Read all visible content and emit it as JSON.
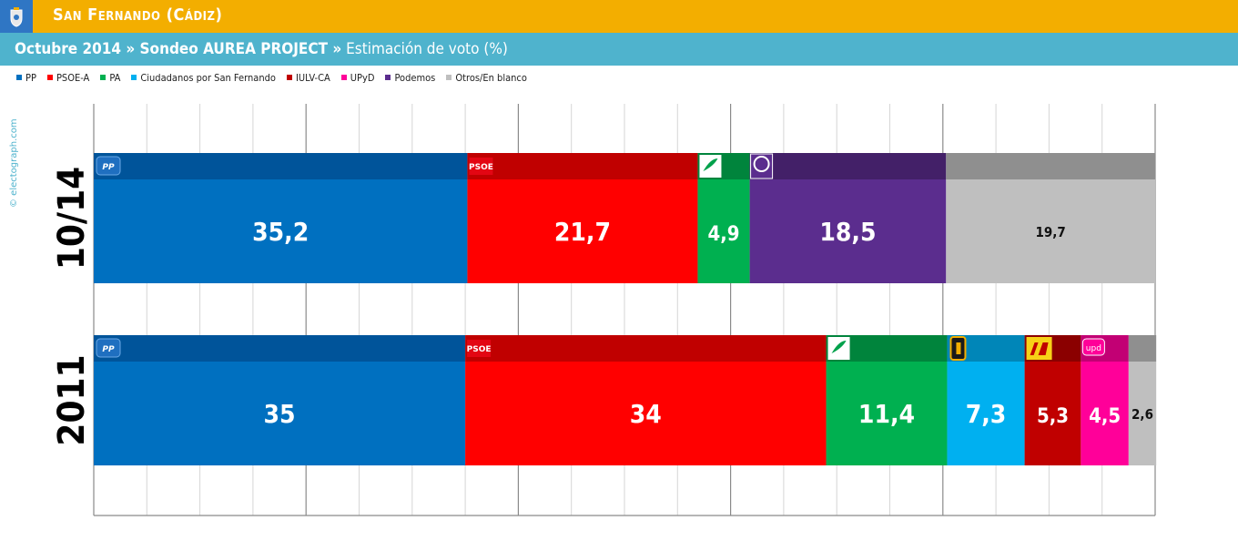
{
  "header": {
    "title": "San Fernando (Cádiz)",
    "subtitle_bold": "Octubre 2014 » Sondeo AUREA PROJECT »",
    "subtitle_rest": " Estimación de voto (%)",
    "colors": {
      "top_bar": "#f3ae00",
      "sub_bar": "#4fb3cd"
    }
  },
  "watermark": "© electograph.com",
  "chart_data": {
    "type": "bar",
    "orientation": "horizontal-stacked",
    "legend": [
      {
        "name": "PP",
        "color": "#0070c0"
      },
      {
        "name": "PSOE-A",
        "color": "#ff0000"
      },
      {
        "name": "PA",
        "color": "#00b050"
      },
      {
        "name": "Ciudadanos por San Fernando",
        "color": "#00b0f0"
      },
      {
        "name": "IULV-CA",
        "color": "#c00000"
      },
      {
        "name": "UPyD",
        "color": "#ff0099"
      },
      {
        "name": "Podemos",
        "color": "#5b2d8e"
      },
      {
        "name": "Otros/En blanco",
        "color": "#bfbfbf"
      }
    ],
    "xlim": [
      0,
      100
    ],
    "grid": true,
    "rows": [
      {
        "label": "10/14",
        "segments": [
          {
            "party": "PP",
            "value": 35.2,
            "label": "35,2",
            "color": "#0070c0",
            "dark": "#00549a",
            "logo": "PP"
          },
          {
            "party": "PSOE-A",
            "value": 21.7,
            "label": "21,7",
            "color": "#ff0000",
            "dark": "#c00000",
            "logo": "PSOE"
          },
          {
            "party": "PA",
            "value": 4.9,
            "label": "4,9",
            "color": "#00b050",
            "dark": "#00843c",
            "logo": "PA"
          },
          {
            "party": "Podemos",
            "value": 18.5,
            "label": "18,5",
            "color": "#5b2d8e",
            "dark": "#432068",
            "logo": "Podemos"
          },
          {
            "party": "Otros/En blanco",
            "value": 19.7,
            "label": "19,7",
            "color": "#bfbfbf",
            "dark": "#8f8f8f",
            "logo": ""
          }
        ]
      },
      {
        "label": "2011",
        "segments": [
          {
            "party": "PP",
            "value": 35,
            "label": "35",
            "color": "#0070c0",
            "dark": "#00549a",
            "logo": "PP"
          },
          {
            "party": "PSOE-A",
            "value": 34,
            "label": "34",
            "color": "#ff0000",
            "dark": "#c00000",
            "logo": "PSOE"
          },
          {
            "party": "PA",
            "value": 11.4,
            "label": "11,4",
            "color": "#00b050",
            "dark": "#00843c",
            "logo": "PA"
          },
          {
            "party": "Ciudadanos por San Fernando",
            "value": 7.3,
            "label": "7,3",
            "color": "#00b0f0",
            "dark": "#0086b8",
            "logo": "C"
          },
          {
            "party": "IULV-CA",
            "value": 5.3,
            "label": "5,3",
            "color": "#c00000",
            "dark": "#8b0000",
            "logo": "IU"
          },
          {
            "party": "UPyD",
            "value": 4.5,
            "label": "4,5",
            "color": "#ff0099",
            "dark": "#c20074",
            "logo": "upd"
          },
          {
            "party": "Otros/En blanco",
            "value": 2.6,
            "label": "2,6",
            "color": "#bfbfbf",
            "dark": "#8f8f8f",
            "logo": ""
          }
        ]
      }
    ]
  }
}
